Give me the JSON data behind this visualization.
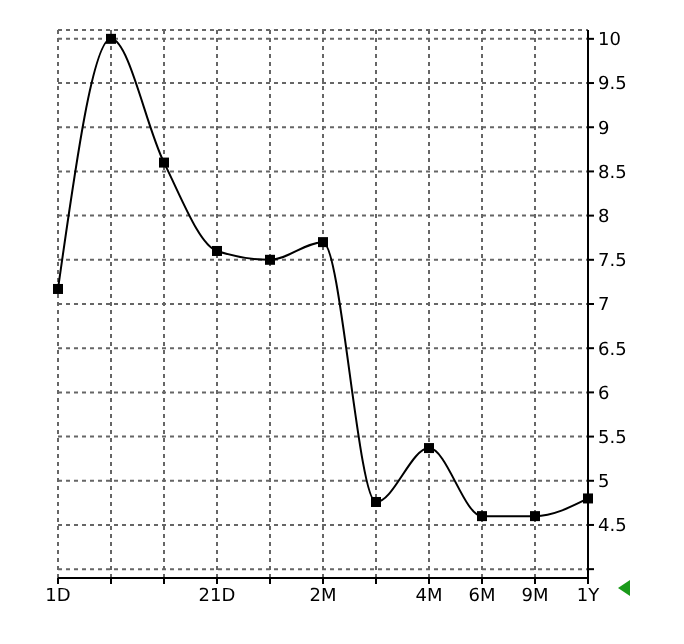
{
  "chart_data": {
    "type": "line",
    "categories": [
      "1D",
      null,
      null,
      "21D",
      null,
      "2M",
      null,
      "4M",
      "6M",
      "9M",
      "1Y"
    ],
    "values": [
      7.17,
      10,
      8.6,
      7.6,
      7.5,
      7.7,
      4.76,
      5.37,
      4.6,
      4.6,
      4.8
    ],
    "color": "#000000",
    "marker": "square",
    "grid": true,
    "ylim": [
      3.9,
      10.1
    ],
    "yticks": [
      {
        "value": 4,
        "label": null
      },
      4.5,
      5,
      5.5,
      6,
      6.5,
      7,
      7.5,
      8,
      8.5,
      9,
      9.5,
      10
    ]
  }
}
